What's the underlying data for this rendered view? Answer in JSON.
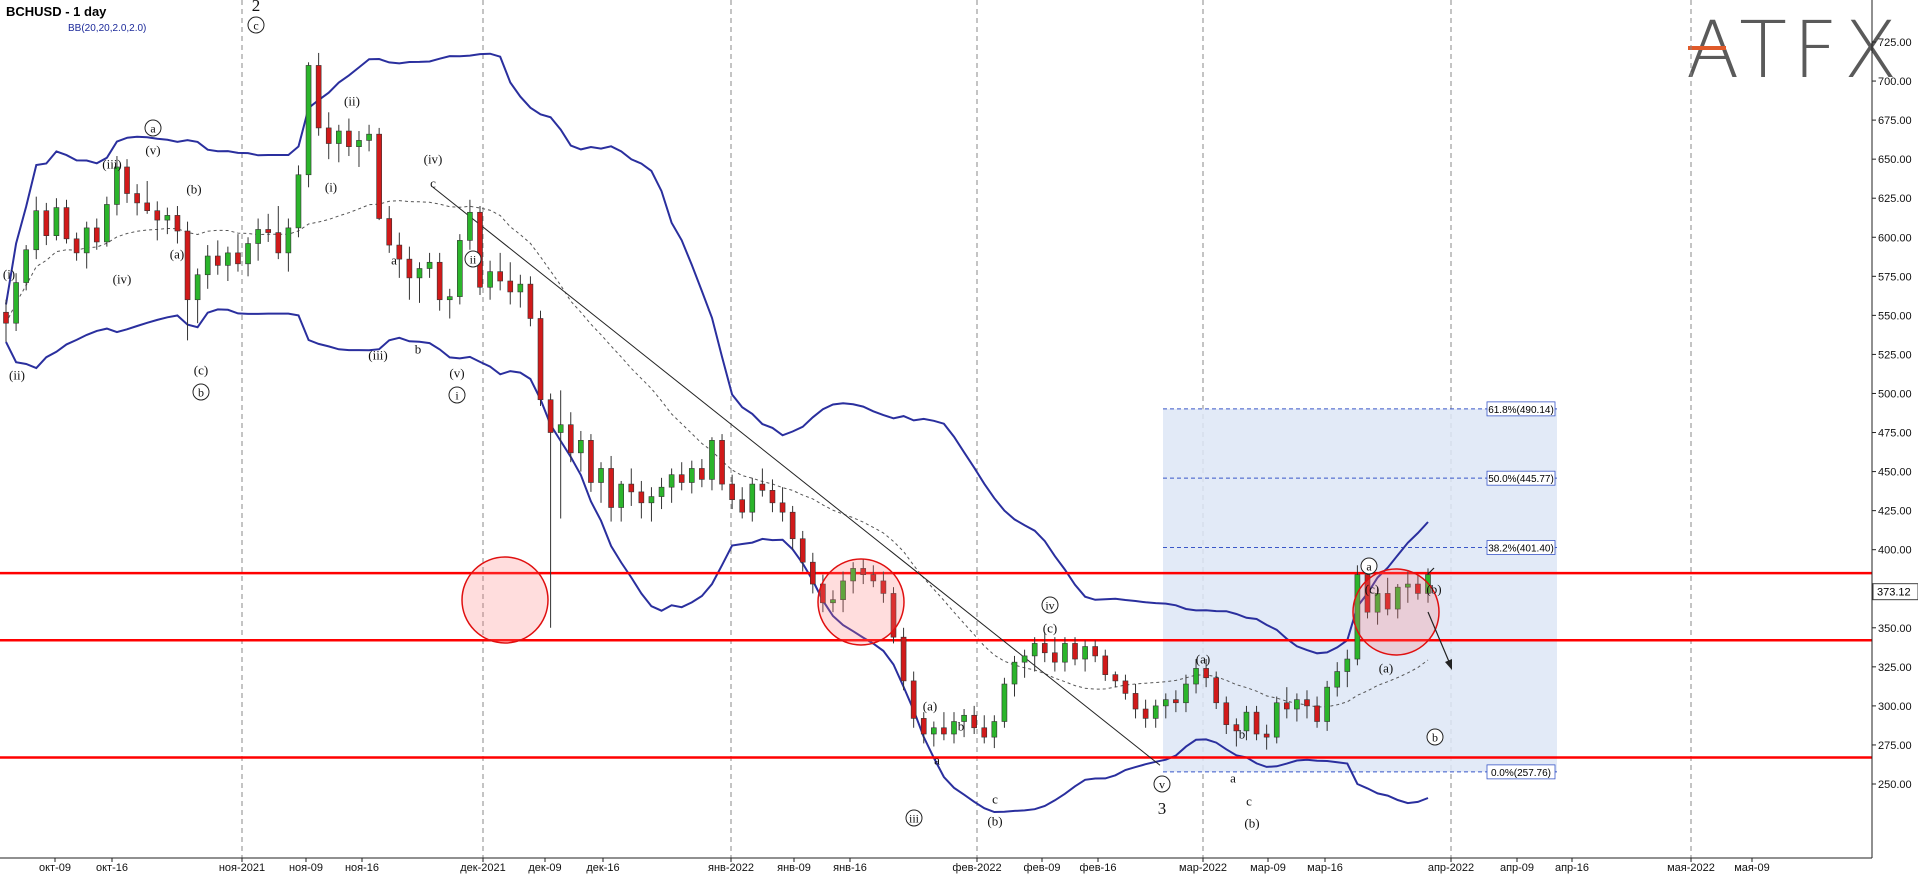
{
  "header": {
    "title": "BCHUSD - 1 day",
    "indicator": "BB(20,20,2.0,2.0)"
  },
  "logo": {
    "text": "ATFX"
  },
  "colors": {
    "up": "#2bb52b",
    "down": "#d11a1a",
    "bands": "#2a2f9e",
    "level": "#ff0000",
    "fib_box": "#dde6f6",
    "fib_line": "#3a57c8"
  },
  "chart_data": {
    "type": "candlestick",
    "title": "BCHUSD - 1 day",
    "ylim": [
      225,
      735
    ],
    "y_ticks": [
      "725.00",
      "700.00",
      "675.00",
      "650.00",
      "625.00",
      "600.00",
      "575.00",
      "550.00",
      "525.00",
      "500.00",
      "475.00",
      "450.00",
      "425.00",
      "400.00",
      "375.00",
      "350.00",
      "325.00",
      "300.00",
      "275.00",
      "250.00"
    ],
    "x_ticks": [
      "окт-09",
      "окт-16",
      "ноя-2021",
      "ноя-09",
      "ноя-16",
      "дек-2021",
      "дек-09",
      "дек-16",
      "янв-2022",
      "янв-09",
      "янв-16",
      "фев-2022",
      "фев-09",
      "фев-16",
      "мар-2022",
      "мар-09",
      "мар-16",
      "апр-2022",
      "апр-09",
      "апр-16",
      "мая-2022",
      "мая-09"
    ],
    "last_price": "373.12",
    "levels": [
      385,
      342,
      267
    ],
    "fibonacci": [
      {
        "label": "61.8%(490.14)",
        "value": 490.14
      },
      {
        "label": "50.0%(445.77)",
        "value": 445.77
      },
      {
        "label": "38.2%(401.40)",
        "value": 401.4
      },
      {
        "label": "0.0%(257.76)",
        "value": 257.76
      }
    ],
    "candles": [
      [
        552,
        560,
        533,
        545
      ],
      [
        545,
        577,
        540,
        571
      ],
      [
        571,
        595,
        566,
        592
      ],
      [
        592,
        626,
        586,
        617
      ],
      [
        617,
        622,
        595,
        601
      ],
      [
        601,
        625,
        598,
        619
      ],
      [
        619,
        624,
        596,
        599
      ],
      [
        599,
        603,
        585,
        590
      ],
      [
        590,
        610,
        580,
        606
      ],
      [
        606,
        612,
        592,
        597
      ],
      [
        597,
        626,
        594,
        621
      ],
      [
        621,
        652,
        614,
        645
      ],
      [
        645,
        650,
        622,
        628
      ],
      [
        628,
        634,
        614,
        622
      ],
      [
        622,
        636,
        615,
        617
      ],
      [
        617,
        623,
        598,
        611
      ],
      [
        611,
        619,
        602,
        614
      ],
      [
        614,
        620,
        596,
        604
      ],
      [
        604,
        610,
        534,
        560
      ],
      [
        560,
        580,
        545,
        576
      ],
      [
        576,
        595,
        567,
        588
      ],
      [
        588,
        598,
        576,
        582
      ],
      [
        582,
        594,
        572,
        590
      ],
      [
        590,
        602,
        578,
        583
      ],
      [
        583,
        600,
        575,
        596
      ],
      [
        596,
        612,
        585,
        605
      ],
      [
        605,
        615,
        597,
        603
      ],
      [
        603,
        620,
        586,
        590
      ],
      [
        590,
        612,
        578,
        606
      ],
      [
        606,
        646,
        600,
        640
      ],
      [
        640,
        712,
        632,
        710
      ],
      [
        710,
        718,
        665,
        670
      ],
      [
        670,
        680,
        650,
        660
      ],
      [
        660,
        672,
        648,
        668
      ],
      [
        668,
        676,
        652,
        658
      ],
      [
        658,
        668,
        645,
        662
      ],
      [
        662,
        672,
        655,
        666
      ],
      [
        666,
        670,
        611,
        612
      ],
      [
        612,
        620,
        590,
        595
      ],
      [
        595,
        603,
        574,
        586
      ],
      [
        586,
        594,
        560,
        574
      ],
      [
        574,
        584,
        558,
        580
      ],
      [
        580,
        590,
        574,
        584
      ],
      [
        584,
        590,
        553,
        560
      ],
      [
        560,
        567,
        548,
        562
      ],
      [
        562,
        602,
        557,
        598
      ],
      [
        598,
        624,
        592,
        616
      ],
      [
        616,
        620,
        563,
        568
      ],
      [
        568,
        585,
        560,
        578
      ],
      [
        578,
        590,
        566,
        572
      ],
      [
        572,
        584,
        557,
        565
      ],
      [
        565,
        576,
        555,
        570
      ],
      [
        570,
        575,
        543,
        548
      ],
      [
        548,
        553,
        492,
        496
      ],
      [
        496,
        500,
        350,
        475
      ],
      [
        475,
        502,
        420,
        480
      ],
      [
        480,
        488,
        456,
        462
      ],
      [
        462,
        476,
        450,
        470
      ],
      [
        470,
        474,
        437,
        443
      ],
      [
        443,
        456,
        430,
        452
      ],
      [
        452,
        460,
        418,
        427
      ],
      [
        427,
        444,
        418,
        442
      ],
      [
        442,
        452,
        428,
        437
      ],
      [
        437,
        444,
        420,
        430
      ],
      [
        430,
        440,
        418,
        434
      ],
      [
        434,
        446,
        426,
        440
      ],
      [
        440,
        452,
        430,
        448
      ],
      [
        448,
        456,
        438,
        443
      ],
      [
        443,
        457,
        436,
        452
      ],
      [
        452,
        458,
        440,
        445
      ],
      [
        445,
        472,
        438,
        470
      ],
      [
        470,
        474,
        438,
        442
      ],
      [
        442,
        448,
        426,
        432
      ],
      [
        432,
        440,
        420,
        424
      ],
      [
        424,
        446,
        418,
        442
      ],
      [
        442,
        452,
        434,
        438
      ],
      [
        438,
        445,
        424,
        430
      ],
      [
        430,
        440,
        418,
        424
      ],
      [
        424,
        428,
        400,
        407
      ],
      [
        407,
        412,
        386,
        392
      ],
      [
        392,
        398,
        372,
        378
      ],
      [
        378,
        384,
        360,
        366
      ],
      [
        366,
        374,
        360,
        368
      ],
      [
        368,
        386,
        360,
        380
      ],
      [
        380,
        392,
        372,
        388
      ],
      [
        388,
        394,
        378,
        384
      ],
      [
        384,
        390,
        376,
        380
      ],
      [
        380,
        386,
        366,
        372
      ],
      [
        372,
        376,
        340,
        344
      ],
      [
        344,
        350,
        310,
        316
      ],
      [
        316,
        322,
        286,
        292
      ],
      [
        292,
        296,
        276,
        282
      ],
      [
        282,
        290,
        274,
        286
      ],
      [
        286,
        296,
        278,
        282
      ],
      [
        282,
        296,
        276,
        290
      ],
      [
        290,
        298,
        280,
        294
      ],
      [
        294,
        300,
        282,
        286
      ],
      [
        286,
        294,
        276,
        280
      ],
      [
        280,
        294,
        273,
        290
      ],
      [
        290,
        318,
        286,
        314
      ],
      [
        314,
        332,
        306,
        328
      ],
      [
        328,
        336,
        318,
        332
      ],
      [
        332,
        344,
        322,
        340
      ],
      [
        340,
        347,
        328,
        334
      ],
      [
        334,
        344,
        322,
        328
      ],
      [
        328,
        344,
        322,
        340
      ],
      [
        340,
        344,
        326,
        330
      ],
      [
        330,
        342,
        322,
        338
      ],
      [
        338,
        342,
        328,
        332
      ],
      [
        332,
        336,
        316,
        320
      ],
      [
        320,
        322,
        312,
        316
      ],
      [
        316,
        320,
        304,
        308
      ],
      [
        308,
        314,
        292,
        298
      ],
      [
        298,
        304,
        286,
        292
      ],
      [
        292,
        304,
        286,
        300
      ],
      [
        300,
        308,
        292,
        304
      ],
      [
        304,
        310,
        296,
        302
      ],
      [
        302,
        320,
        296,
        314
      ],
      [
        314,
        330,
        308,
        324
      ],
      [
        324,
        330,
        312,
        318
      ],
      [
        318,
        322,
        298,
        302
      ],
      [
        302,
        306,
        282,
        288
      ],
      [
        288,
        292,
        274,
        284
      ],
      [
        284,
        300,
        278,
        296
      ],
      [
        296,
        300,
        278,
        282
      ],
      [
        282,
        288,
        272,
        280
      ],
      [
        280,
        306,
        276,
        302
      ],
      [
        302,
        312,
        292,
        298
      ],
      [
        298,
        308,
        290,
        304
      ],
      [
        304,
        310,
        292,
        300
      ],
      [
        300,
        306,
        286,
        290
      ],
      [
        290,
        316,
        284,
        312
      ],
      [
        312,
        328,
        306,
        322
      ],
      [
        322,
        336,
        312,
        330
      ],
      [
        330,
        390,
        326,
        384
      ],
      [
        384,
        392,
        356,
        360
      ],
      [
        360,
        376,
        352,
        372
      ],
      [
        372,
        382,
        358,
        362
      ],
      [
        362,
        378,
        356,
        376
      ],
      [
        376,
        386,
        366,
        378
      ],
      [
        378,
        384,
        368,
        372
      ],
      [
        372,
        388,
        366,
        384
      ]
    ],
    "wave_labels": [
      {
        "t": "2",
        "x": 256,
        "y": 5,
        "style": "plain",
        "size": 17
      },
      {
        "t": "c",
        "x": 256,
        "y": 25,
        "style": "circle"
      },
      {
        "t": "BB(20,20,2.0,2.0)",
        "x": -1,
        "y": -1,
        "style": "none"
      },
      {
        "t": "(i)",
        "x": 9,
        "y": 274,
        "style": "paren"
      },
      {
        "t": "(ii)",
        "x": 17,
        "y": 375,
        "style": "paren"
      },
      {
        "t": "a",
        "x": 153,
        "y": 128,
        "style": "circle"
      },
      {
        "t": "(v)",
        "x": 153,
        "y": 150,
        "style": "paren"
      },
      {
        "t": "(iii)",
        "x": 112,
        "y": 164,
        "style": "paren"
      },
      {
        "t": "(b)",
        "x": 194,
        "y": 189,
        "style": "paren"
      },
      {
        "t": "(a)",
        "x": 177,
        "y": 254,
        "style": "paren"
      },
      {
        "t": "(iv)",
        "x": 122,
        "y": 279,
        "style": "paren"
      },
      {
        "t": "(c)",
        "x": 201,
        "y": 370,
        "style": "paren"
      },
      {
        "t": "b",
        "x": 201,
        "y": 392,
        "style": "circle"
      },
      {
        "t": "(ii)",
        "x": 352,
        "y": 101,
        "style": "paren"
      },
      {
        "t": "(i)",
        "x": 331,
        "y": 187,
        "style": "paren"
      },
      {
        "t": "(iv)",
        "x": 433,
        "y": 159,
        "style": "paren"
      },
      {
        "t": "c",
        "x": 433,
        "y": 183,
        "style": "plain"
      },
      {
        "t": "ii",
        "x": 473,
        "y": 259,
        "style": "circle"
      },
      {
        "t": "a",
        "x": 394,
        "y": 260,
        "style": "plain"
      },
      {
        "t": "(iii)",
        "x": 378,
        "y": 355,
        "style": "paren"
      },
      {
        "t": "b",
        "x": 418,
        "y": 349,
        "style": "plain"
      },
      {
        "t": "(v)",
        "x": 457,
        "y": 373,
        "style": "paren"
      },
      {
        "t": "i",
        "x": 457,
        "y": 395,
        "style": "circle"
      },
      {
        "t": "iv",
        "x": 1050,
        "y": 605,
        "style": "circle"
      },
      {
        "t": "(c)",
        "x": 1050,
        "y": 628,
        "style": "paren"
      },
      {
        "t": "(a)",
        "x": 930,
        "y": 706,
        "style": "paren"
      },
      {
        "t": "b",
        "x": 961,
        "y": 726,
        "style": "plain"
      },
      {
        "t": "a",
        "x": 937,
        "y": 760,
        "style": "plain"
      },
      {
        "t": "c",
        "x": 995,
        "y": 799,
        "style": "plain"
      },
      {
        "t": "(b)",
        "x": 995,
        "y": 821,
        "style": "paren"
      },
      {
        "t": "iii",
        "x": 914,
        "y": 818,
        "style": "circle"
      },
      {
        "t": "v",
        "x": 1162,
        "y": 784,
        "style": "circle"
      },
      {
        "t": "3",
        "x": 1162,
        "y": 808,
        "style": "plain",
        "size": 17
      },
      {
        "t": "(a)",
        "x": 1203,
        "y": 659,
        "style": "paren"
      },
      {
        "t": "b",
        "x": 1242,
        "y": 734,
        "style": "plain"
      },
      {
        "t": "a",
        "x": 1233,
        "y": 778,
        "style": "plain"
      },
      {
        "t": "c",
        "x": 1249,
        "y": 801,
        "style": "plain"
      },
      {
        "t": "(b)",
        "x": 1252,
        "y": 823,
        "style": "paren"
      },
      {
        "t": "a",
        "x": 1369,
        "y": 566,
        "style": "circle"
      },
      {
        "t": "(c)",
        "x": 1372,
        "y": 589,
        "style": "paren"
      },
      {
        "t": "(b)",
        "x": 1434,
        "y": 589,
        "style": "paren"
      },
      {
        "t": "(a)",
        "x": 1386,
        "y": 668,
        "style": "paren"
      },
      {
        "t": "b",
        "x": 1435,
        "y": 737,
        "style": "circle"
      }
    ]
  }
}
